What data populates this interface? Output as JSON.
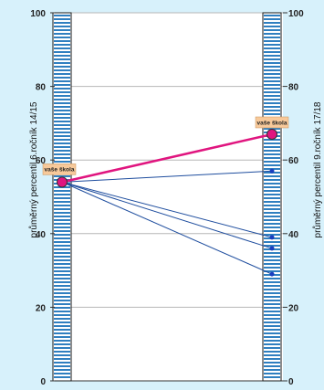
{
  "chart_data": {
    "type": "line",
    "ylim": [
      0,
      100
    ],
    "yticks": [
      0,
      20,
      40,
      60,
      80,
      100
    ],
    "ylabel_left": "průměrný percentil 6.ročník 14/15",
    "ylabel_right": "průměrný percentil 9.ročník 17/18",
    "grid": true,
    "series": [
      {
        "name": "vaše škola",
        "start": 54,
        "end": 67,
        "highlight": true
      },
      {
        "start": 54,
        "end": 57
      },
      {
        "start": 54,
        "end": 39
      },
      {
        "start": 54,
        "end": 36
      },
      {
        "start": 54,
        "end": 29
      }
    ],
    "colors": {
      "highlight": "#e0157f",
      "other": "#1e4d9e",
      "bar_stripe": "#2f7fc0",
      "callout_bg": "#f7c99a"
    }
  }
}
